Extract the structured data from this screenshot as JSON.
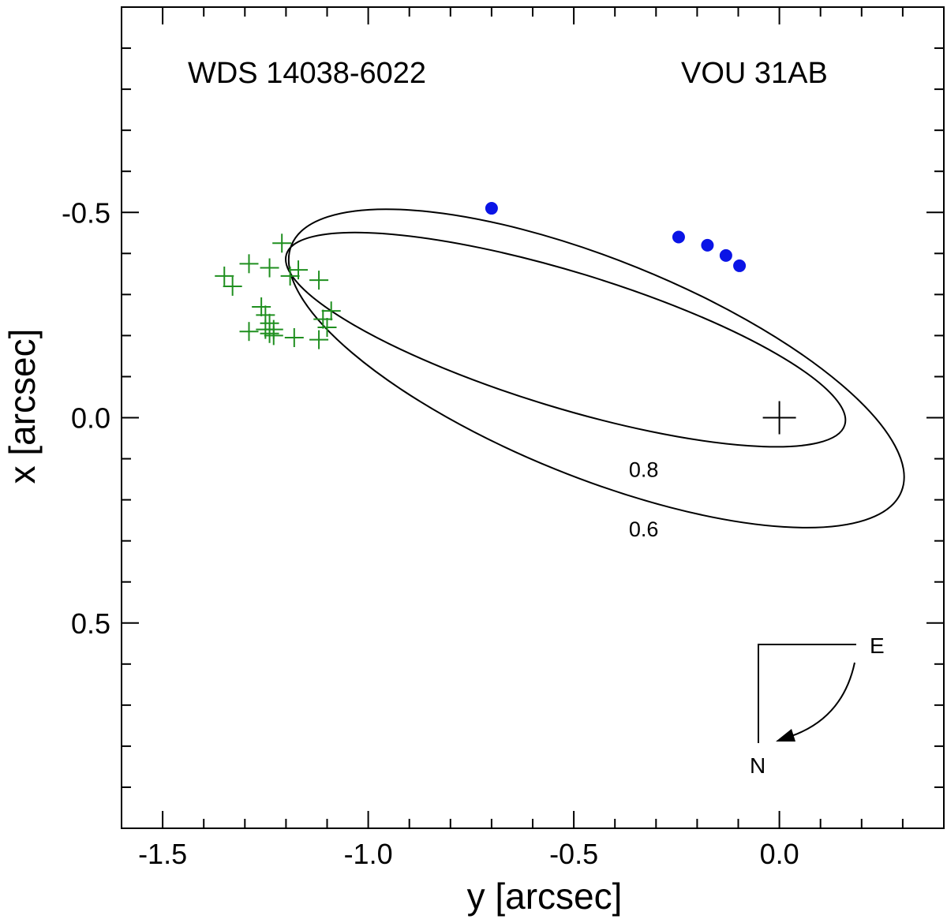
{
  "chart_data": {
    "type": "scatter",
    "title_left": "WDS 14038-6022",
    "title_right": "VOU 31AB",
    "xlabel": "y [arcsec]",
    "ylabel": "x [arcsec]",
    "xlim": [
      -1.6,
      0.4
    ],
    "ylim": [
      -1.0,
      1.0
    ],
    "y_inverted_display": true,
    "x_ticks": [
      {
        "v": -1.5,
        "label": "-1.5"
      },
      {
        "v": -1.0,
        "label": "-1.0"
      },
      {
        "v": -0.5,
        "label": "-0.5"
      },
      {
        "v": 0.0,
        "label": "0.0"
      }
    ],
    "y_ticks": [
      {
        "v": -0.5,
        "label": "-0.5"
      },
      {
        "v": 0.0,
        "label": "0.0"
      },
      {
        "v": 0.5,
        "label": "0.5"
      }
    ],
    "blue_points": [
      {
        "y": -0.7,
        "x": -0.51
      },
      {
        "y": -0.245,
        "x": -0.44
      },
      {
        "y": -0.175,
        "x": -0.42
      },
      {
        "y": -0.13,
        "x": -0.395
      },
      {
        "y": -0.097,
        "x": -0.37
      }
    ],
    "green_crosses": [
      {
        "y": -1.21,
        "x": -0.425
      },
      {
        "y": -1.29,
        "x": -0.375
      },
      {
        "y": -1.24,
        "x": -0.365
      },
      {
        "y": -1.17,
        "x": -0.36
      },
      {
        "y": -1.19,
        "x": -0.345
      },
      {
        "y": -1.35,
        "x": -0.345
      },
      {
        "y": -1.12,
        "x": -0.335
      },
      {
        "y": -1.33,
        "x": -0.32
      },
      {
        "y": -1.26,
        "x": -0.27
      },
      {
        "y": -1.09,
        "x": -0.26
      },
      {
        "y": -1.25,
        "x": -0.25
      },
      {
        "y": -1.11,
        "x": -0.24
      },
      {
        "y": -1.24,
        "x": -0.23
      },
      {
        "y": -1.1,
        "x": -0.22
      },
      {
        "y": -1.25,
        "x": -0.215
      },
      {
        "y": -1.23,
        "x": -0.215
      },
      {
        "y": -1.29,
        "x": -0.21
      },
      {
        "y": -1.24,
        "x": -0.205
      },
      {
        "y": -1.23,
        "x": -0.2
      },
      {
        "y": -1.18,
        "x": -0.195
      },
      {
        "y": -1.12,
        "x": -0.19
      }
    ],
    "primary_star": {
      "y": 0.0,
      "x": 0.0
    },
    "orbits": [
      {
        "label": "0.8",
        "label_at": {
          "y": -0.33,
          "x": 0.125
        },
        "cx": -0.52,
        "cy": -0.19,
        "a": 0.71,
        "b": 0.165,
        "angle_deg": 17
      },
      {
        "label": "0.6",
        "label_at": {
          "y": -0.33,
          "x": 0.27
        },
        "cx": -0.445,
        "cy": -0.12,
        "a": 0.8,
        "b": 0.265,
        "angle_deg": 22
      }
    ],
    "compass": {
      "east": "E",
      "north": "N"
    }
  }
}
